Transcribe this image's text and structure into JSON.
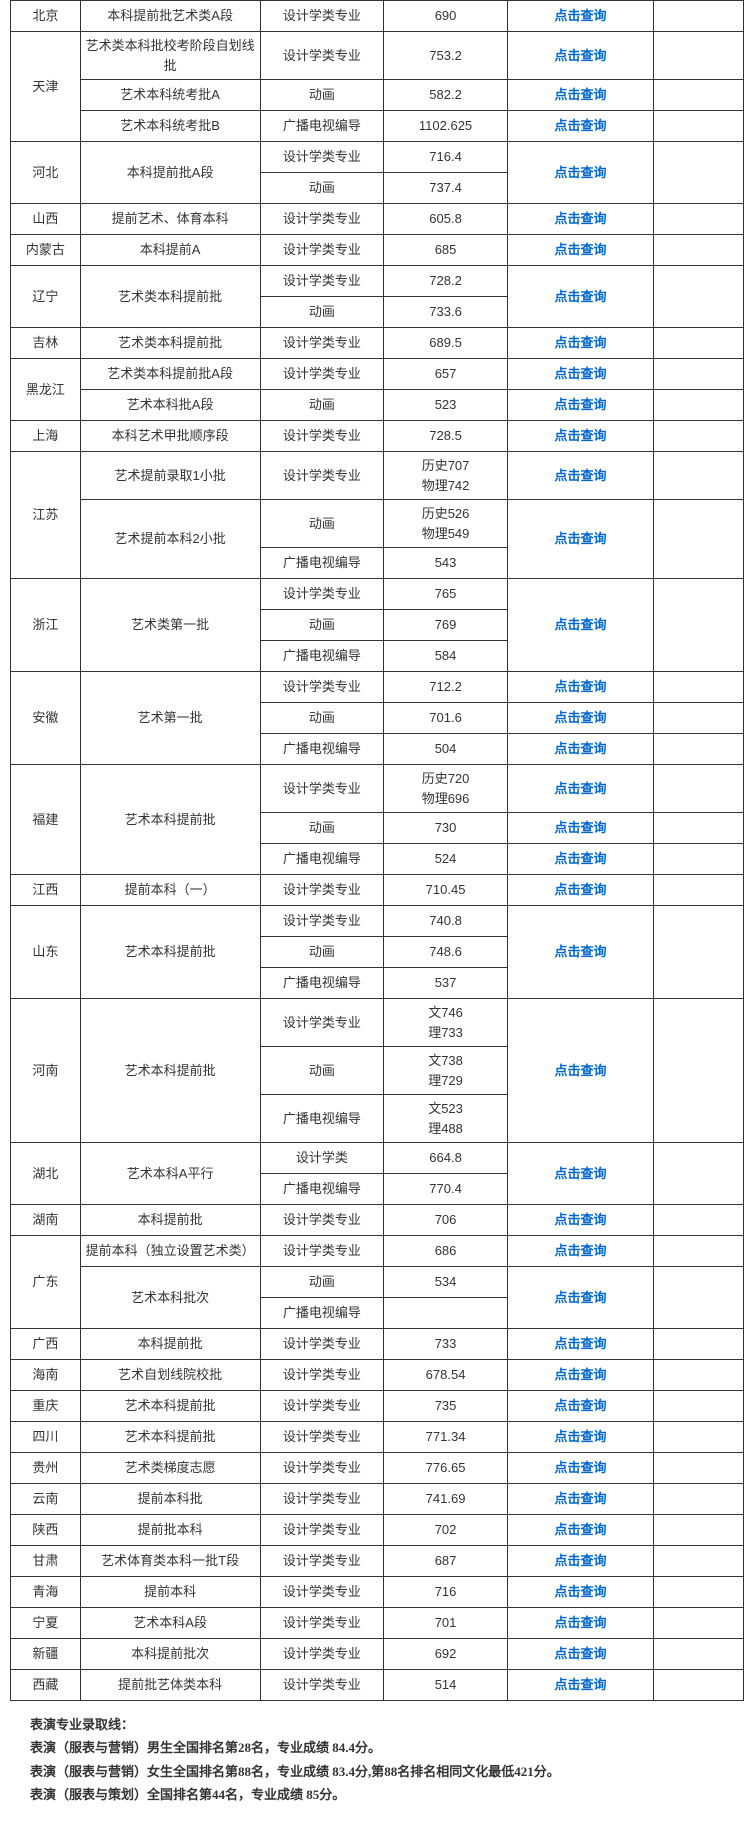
{
  "linkText": "点击查询",
  "majors": {
    "design": "设计学类专业",
    "designShort": "设计学类",
    "anim": "动画",
    "tv": "广播电视编导"
  },
  "rows": [
    {
      "prov": "北京",
      "batch": "本科提前批艺术类A段",
      "cells": [
        [
          "design",
          "690"
        ]
      ],
      "links": 1
    },
    {
      "prov": "天津",
      "groups": [
        {
          "batch": "艺术类本科批校考阶段自划线批",
          "cells": [
            [
              "design",
              "753.2"
            ]
          ],
          "links": 1
        },
        {
          "batch": "艺术本科统考批A",
          "cells": [
            [
              "anim",
              "582.2"
            ]
          ],
          "links": 1
        },
        {
          "batch": "艺术本科统考批B",
          "cells": [
            [
              "tv",
              "1102.625"
            ]
          ],
          "links": 1
        }
      ]
    },
    {
      "prov": "河北",
      "batch": "本科提前批A段",
      "cells": [
        [
          "design",
          "716.4"
        ],
        [
          "anim",
          "737.4"
        ]
      ],
      "links": 1
    },
    {
      "prov": "山西",
      "batch": "提前艺术、体育本科",
      "cells": [
        [
          "design",
          "605.8"
        ]
      ],
      "links": 1
    },
    {
      "prov": "内蒙古",
      "batch": "本科提前A",
      "cells": [
        [
          "design",
          "685"
        ]
      ],
      "links": 1
    },
    {
      "prov": "辽宁",
      "batch": "艺术类本科提前批",
      "cells": [
        [
          "design",
          "728.2"
        ],
        [
          "anim",
          "733.6"
        ]
      ],
      "links": 1
    },
    {
      "prov": "吉林",
      "batch": "艺术类本科提前批",
      "cells": [
        [
          "design",
          "689.5"
        ]
      ],
      "links": 1
    },
    {
      "prov": "黑龙江",
      "groups": [
        {
          "batch": "艺术类本科提前批A段",
          "cells": [
            [
              "design",
              "657"
            ]
          ],
          "links": 1
        },
        {
          "batch": "艺术本科批A段",
          "cells": [
            [
              "anim",
              "523"
            ]
          ],
          "links": 1
        }
      ]
    },
    {
      "prov": "上海",
      "batch": "本科艺术甲批顺序段",
      "cells": [
        [
          "design",
          "728.5"
        ]
      ],
      "links": 1
    },
    {
      "prov": "江苏",
      "groups": [
        {
          "batch": "艺术提前录取1小批",
          "cells": [
            [
              "design",
              "历史707<br>物理742"
            ]
          ],
          "links": 1
        },
        {
          "batch": "艺术提前本科2小批",
          "cells": [
            [
              "anim",
              "历史526<br>物理549"
            ],
            [
              "tv",
              "543"
            ]
          ],
          "links": 1
        }
      ]
    },
    {
      "prov": "浙江",
      "batch": "艺术类第一批",
      "cells": [
        [
          "design",
          "765"
        ],
        [
          "anim",
          "769"
        ],
        [
          "tv",
          "584"
        ]
      ],
      "links": 1
    },
    {
      "prov": "安徽",
      "batch": "艺术第一批",
      "cells": [
        [
          "design",
          "712.2"
        ],
        [
          "anim",
          "701.6"
        ],
        [
          "tv",
          "504"
        ]
      ],
      "links": 3
    },
    {
      "prov": "福建",
      "batch": "艺术本科提前批",
      "cells": [
        [
          "design",
          "历史720<br>物理696"
        ],
        [
          "anim",
          "730"
        ],
        [
          "tv",
          "524"
        ]
      ],
      "links": 3
    },
    {
      "prov": "江西",
      "batch": "提前本科（一）",
      "cells": [
        [
          "design",
          "710.45"
        ]
      ],
      "links": 1
    },
    {
      "prov": "山东",
      "batch": "艺术本科提前批",
      "cells": [
        [
          "design",
          "740.8"
        ],
        [
          "anim",
          "748.6"
        ],
        [
          "tv",
          "537"
        ]
      ],
      "links": 1
    },
    {
      "prov": "河南",
      "batch": "艺术本科提前批",
      "cells": [
        [
          "design",
          "文746<br>理733"
        ],
        [
          "anim",
          "文738<br>理729"
        ],
        [
          "tv",
          "文523<br>理488"
        ]
      ],
      "links": 1
    },
    {
      "prov": "湖北",
      "batch": "艺术本科A平行",
      "cells": [
        [
          "designShort",
          "664.8"
        ],
        [
          "tv",
          "770.4"
        ]
      ],
      "links": 1
    },
    {
      "prov": "湖南",
      "batch": "本科提前批",
      "cells": [
        [
          "design",
          "706"
        ]
      ],
      "links": 1
    },
    {
      "prov": "广东",
      "groups": [
        {
          "batch": "提前本科（独立设置艺术类）",
          "cells": [
            [
              "design",
              "686"
            ]
          ],
          "links": 1
        },
        {
          "batch": "艺术本科批次",
          "cells": [
            [
              "anim",
              "534"
            ],
            [
              "tv",
              ""
            ]
          ],
          "links": 1
        }
      ]
    },
    {
      "prov": "广西",
      "batch": "本科提前批",
      "cells": [
        [
          "design",
          "733"
        ]
      ],
      "links": 1
    },
    {
      "prov": "海南",
      "batch": "艺术自划线院校批",
      "cells": [
        [
          "design",
          "678.54"
        ]
      ],
      "links": 1
    },
    {
      "prov": "重庆",
      "batch": "艺术本科提前批",
      "cells": [
        [
          "design",
          "735"
        ]
      ],
      "links": 1
    },
    {
      "prov": "四川",
      "batch": "艺术本科提前批",
      "cells": [
        [
          "design",
          "771.34"
        ]
      ],
      "links": 1
    },
    {
      "prov": "贵州",
      "batch": "艺术类梯度志愿",
      "cells": [
        [
          "design",
          "776.65"
        ]
      ],
      "links": 1
    },
    {
      "prov": "云南",
      "batch": "提前本科批",
      "cells": [
        [
          "design",
          "741.69"
        ]
      ],
      "links": 1
    },
    {
      "prov": "陕西",
      "batch": "提前批本科",
      "cells": [
        [
          "design",
          "702"
        ]
      ],
      "links": 1
    },
    {
      "prov": "甘肃",
      "batch": "艺术体育类本科一批T段",
      "cells": [
        [
          "design",
          "687"
        ]
      ],
      "links": 1
    },
    {
      "prov": "青海",
      "batch": "提前本科",
      "cells": [
        [
          "design",
          "716"
        ]
      ],
      "links": 1
    },
    {
      "prov": "宁夏",
      "batch": "艺术本科A段",
      "cells": [
        [
          "design",
          "701"
        ]
      ],
      "links": 1
    },
    {
      "prov": "新疆",
      "batch": "本科提前批次",
      "cells": [
        [
          "design",
          "692"
        ]
      ],
      "links": 1
    },
    {
      "prov": "西藏",
      "batch": "提前批艺体类本科",
      "cells": [
        [
          "design",
          "514"
        ]
      ],
      "links": 1
    }
  ],
  "footnote": {
    "title": "表演专业录取线：",
    "lines": [
      "表演（服表与营销）男生全国排名第28名，专业成绩 84.4分。",
      "表演（服表与营销）女生全国排名第88名，专业成绩 83.4分,第88名排名相同文化最低421分。",
      "表演（服表与策划）全国排名第44名，专业成绩 85分。"
    ]
  }
}
